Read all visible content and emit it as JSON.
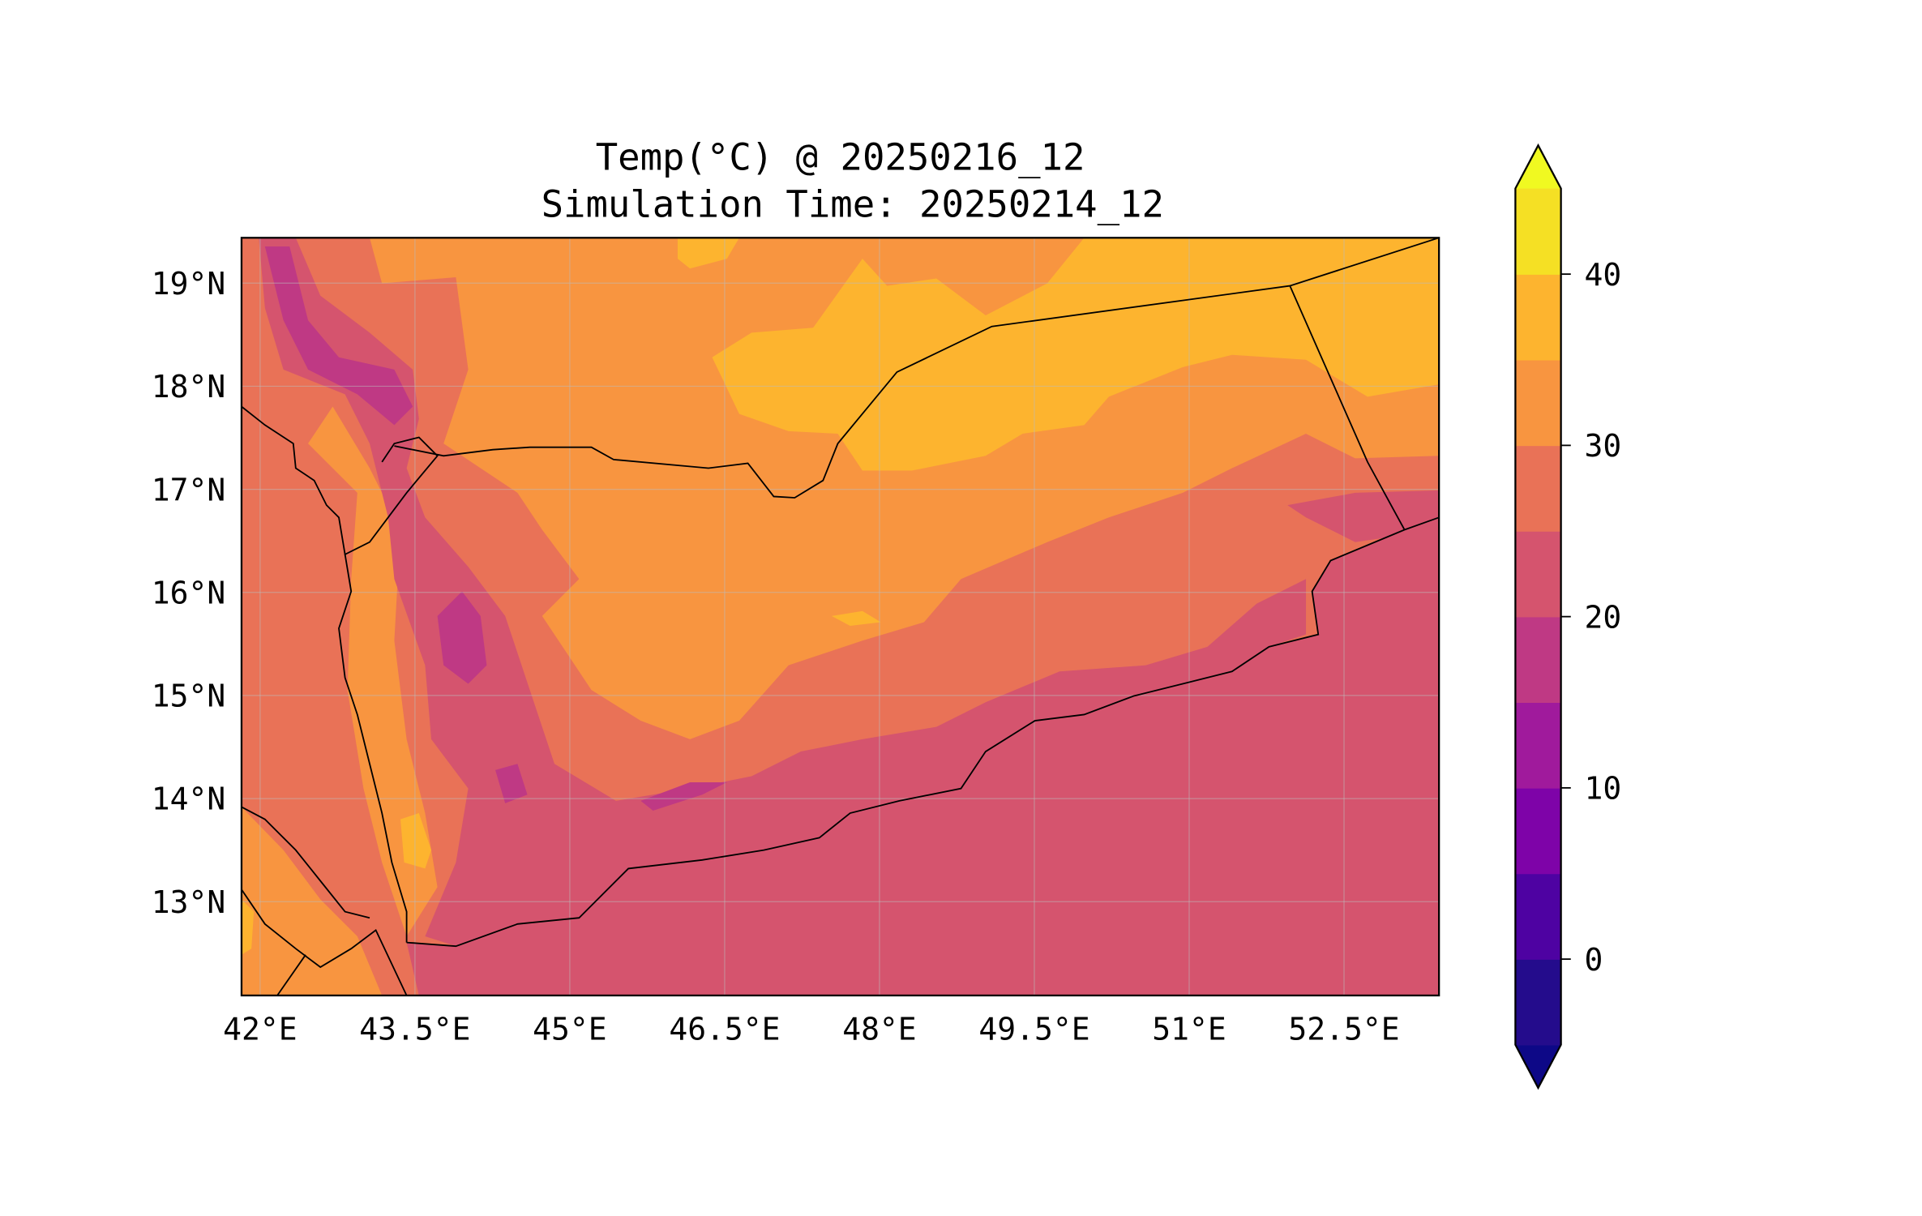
{
  "title": {
    "line1": "Temp(°C) @ 20250216_12",
    "line2": "Simulation Time: 20250214_12"
  },
  "map": {
    "extent": {
      "lon_min": 41.82,
      "lon_max": 53.42,
      "lat_min": 12.09,
      "lat_max": 19.44
    },
    "lon_ticks": [
      {
        "value": 42,
        "label": "42°E"
      },
      {
        "value": 43.5,
        "label": "43.5°E"
      },
      {
        "value": 45,
        "label": "45°E"
      },
      {
        "value": 46.5,
        "label": "46.5°E"
      },
      {
        "value": 48,
        "label": "48°E"
      },
      {
        "value": 49.5,
        "label": "49.5°E"
      },
      {
        "value": 51,
        "label": "51°E"
      },
      {
        "value": 52.5,
        "label": "52.5°E"
      }
    ],
    "lat_ticks": [
      {
        "value": 19,
        "label": "19°N"
      },
      {
        "value": 18,
        "label": "18°N"
      },
      {
        "value": 17,
        "label": "17°N"
      },
      {
        "value": 16,
        "label": "16°N"
      },
      {
        "value": 15,
        "label": "15°N"
      },
      {
        "value": 14,
        "label": "14°N"
      },
      {
        "value": 13,
        "label": "13°N"
      }
    ]
  },
  "colorbar": {
    "levels": [
      -5,
      0,
      5,
      10,
      15,
      20,
      25,
      30,
      35,
      40,
      45
    ],
    "colors": [
      "#240c8c",
      "#4e02a2",
      "#7e03a8",
      "#a01a9c",
      "#bf3984",
      "#d5546e",
      "#e97257",
      "#f89540",
      "#fdb42f",
      "#f5e024"
    ],
    "under_color": "#0d0887",
    "over_color": "#f0f921",
    "ticks": [
      {
        "value": 0,
        "label": "0"
      },
      {
        "value": 10,
        "label": "10"
      },
      {
        "value": 20,
        "label": "20"
      },
      {
        "value": 30,
        "label": "30"
      },
      {
        "value": 40,
        "label": "40"
      }
    ]
  }
}
